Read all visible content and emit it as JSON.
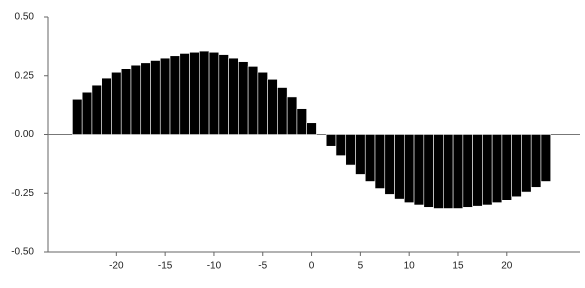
{
  "chart_data": {
    "type": "bar",
    "x": [
      -24,
      -23,
      -22,
      -21,
      -20,
      -19,
      -18,
      -17,
      -16,
      -15,
      -14,
      -13,
      -12,
      -11,
      -10,
      -9,
      -8,
      -7,
      -6,
      -5,
      -4,
      -3,
      -2,
      -1,
      0,
      1,
      2,
      3,
      4,
      5,
      6,
      7,
      8,
      9,
      10,
      11,
      12,
      13,
      14,
      15,
      16,
      17,
      18,
      19,
      20,
      21,
      22,
      23,
      24
    ],
    "values": [
      0.15,
      0.18,
      0.21,
      0.24,
      0.265,
      0.28,
      0.295,
      0.305,
      0.315,
      0.325,
      0.335,
      0.345,
      0.35,
      0.355,
      0.35,
      0.34,
      0.325,
      0.31,
      0.29,
      0.265,
      0.235,
      0.2,
      0.16,
      0.11,
      0.05,
      0,
      -0.05,
      -0.09,
      -0.13,
      -0.17,
      -0.2,
      -0.23,
      -0.255,
      -0.275,
      -0.29,
      -0.3,
      -0.31,
      -0.315,
      -0.315,
      -0.315,
      -0.31,
      -0.305,
      -0.3,
      -0.29,
      -0.28,
      -0.265,
      -0.245,
      -0.225,
      -0.2
    ],
    "color": "#000000",
    "xlim": [
      -27,
      27.5
    ],
    "ylim": [
      -0.5,
      0.5
    ],
    "xticks": [
      -20,
      -15,
      -10,
      -5,
      0,
      5,
      10,
      15,
      20
    ],
    "yticks": [
      {
        "value": 0.5,
        "label": "0.50"
      },
      {
        "value": 0.25,
        "label": "0.25"
      },
      {
        "value": 0,
        "label": "0.00"
      },
      {
        "value": -0.25,
        "label": "-0.25"
      },
      {
        "value": -0.5,
        "label": "-0.50"
      }
    ]
  }
}
